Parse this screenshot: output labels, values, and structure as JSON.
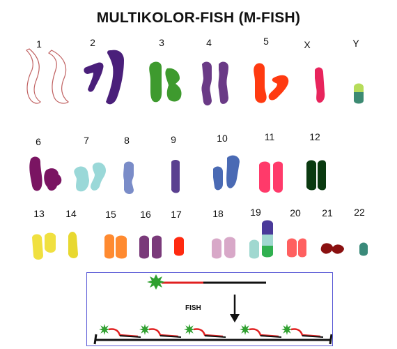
{
  "title": "MULTIKOLOR-FISH (M-FISH)",
  "chromosomes": [
    {
      "label": "1",
      "color": "#ffffff",
      "outline": "#c06060"
    },
    {
      "label": "2",
      "color": "#4a1f7a"
    },
    {
      "label": "3",
      "color": "#3e9a2e"
    },
    {
      "label": "4",
      "color": "#6a3a86"
    },
    {
      "label": "5",
      "color": "#ff3a10"
    },
    {
      "label": "X",
      "color": "#e8245c"
    },
    {
      "label": "Y",
      "color": "#3c8a72",
      "accent": "#b6dc5a"
    },
    {
      "label": "6",
      "color": "#7a1462"
    },
    {
      "label": "7",
      "color": "#9ad8d8"
    },
    {
      "label": "8",
      "color": "#7a8cc8"
    },
    {
      "label": "9",
      "color": "#5a4090"
    },
    {
      "label": "10",
      "color": "#4a6ab4"
    },
    {
      "label": "11",
      "color": "#ff3a6a"
    },
    {
      "label": "12",
      "color": "#0a3a10"
    },
    {
      "label": "13",
      "color": "#f0e040"
    },
    {
      "label": "14",
      "color": "#e8d830"
    },
    {
      "label": "15",
      "color": "#ff8a30"
    },
    {
      "label": "16",
      "color": "#7a3a7a"
    },
    {
      "label": "17",
      "color": "#ff2a10"
    },
    {
      "label": "18",
      "color": "#d8a8c8"
    },
    {
      "label": "19",
      "color": "#a0d8d0",
      "accent": "#4a3a9a",
      "accent2": "#30b050"
    },
    {
      "label": "20",
      "color": "#ff6060"
    },
    {
      "label": "21",
      "color": "#8a1010"
    },
    {
      "label": "22",
      "color": "#3a8a7a"
    }
  ],
  "fish_diagram": {
    "label": "FISH",
    "probe_color": "#30a030",
    "signal_color": "#e02020",
    "dna_color": "#111111",
    "frame_color": "#5a5ad6"
  }
}
